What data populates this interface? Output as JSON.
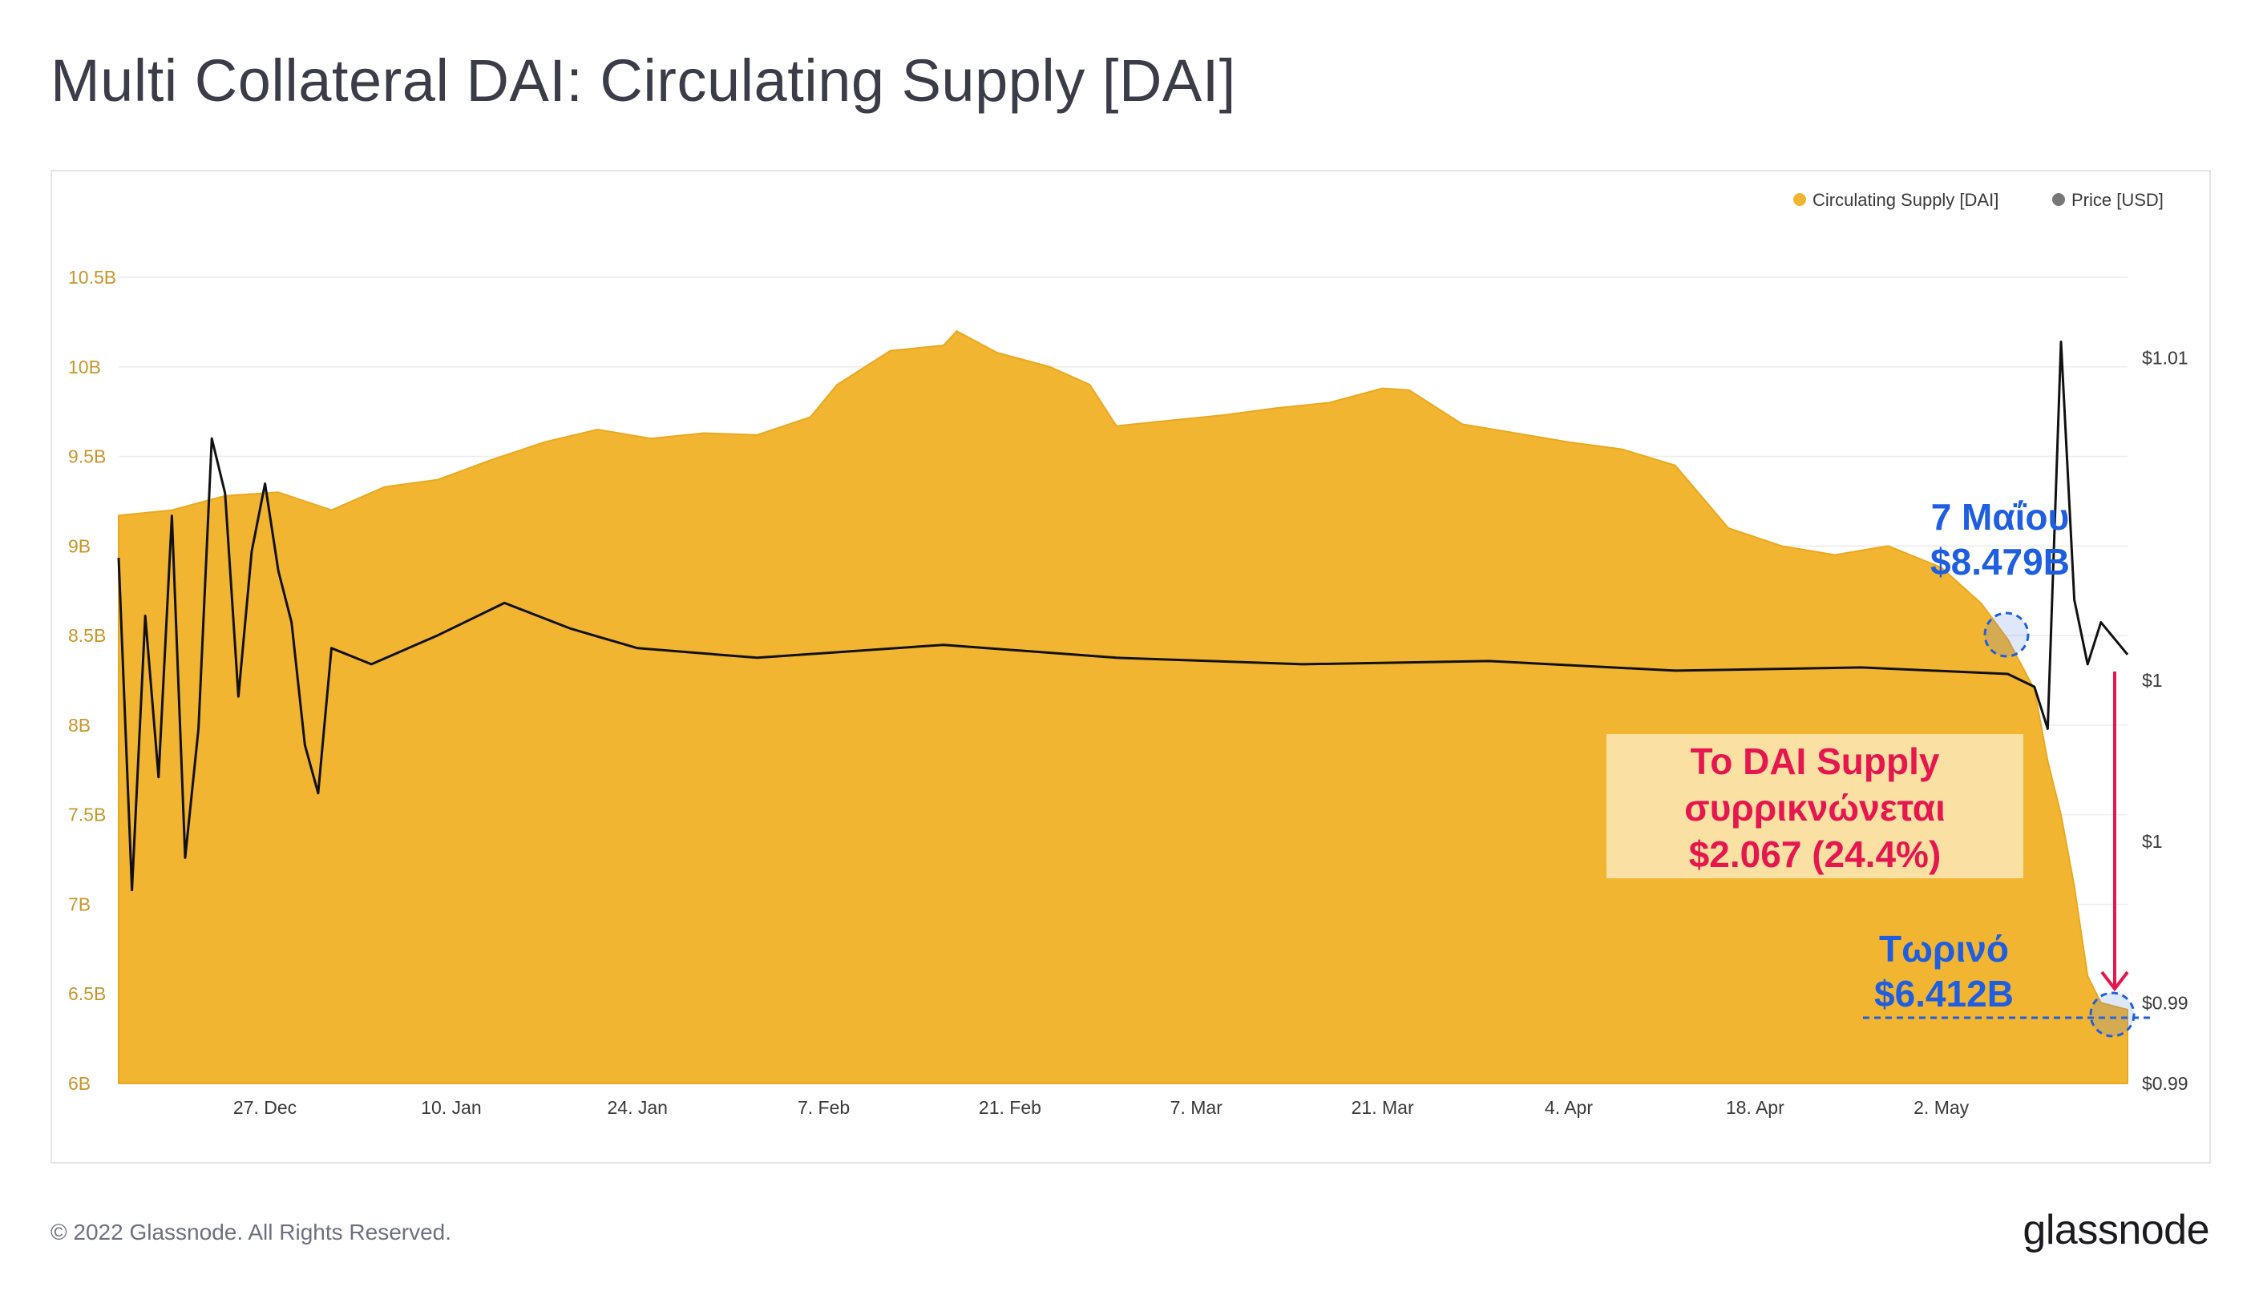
{
  "title": "Multi Collateral DAI: Circulating Supply [DAI]",
  "footer": {
    "copyright": "© 2022 Glassnode. All Rights Reserved.",
    "brand": "glassnode"
  },
  "colors": {
    "supply": "#f2b531",
    "price": "#111111",
    "annotation_blue": "#1f5ee0",
    "annotation_red": "#e6174f",
    "callout_box": "#fbe0a4"
  },
  "chart_data": {
    "type": "area",
    "legend": [
      {
        "name": "Circulating Supply [DAI]",
        "color": "#f2b531"
      },
      {
        "name": "Price [USD]",
        "color": "#777777"
      }
    ],
    "legend_position": "top-right",
    "x_ticks": [
      "27. Dec",
      "10. Jan",
      "24. Jan",
      "7. Feb",
      "21. Feb",
      "7. Mar",
      "21. Mar",
      "4. Apr",
      "18. Apr",
      "2. May"
    ],
    "x_range": [
      "2021-12-16",
      "2022-05-16"
    ],
    "y_left": {
      "ticks": [
        "10.5B",
        "10B",
        "9.5B",
        "9B",
        "8.5B",
        "8B",
        "7.5B",
        "7B",
        "6.5B",
        "6B"
      ],
      "range": [
        6.0,
        10.5
      ],
      "unit": "B DAI"
    },
    "y_right": {
      "ticks": [
        "$1.01",
        "$1",
        "$1",
        "$0.99",
        "$0.99"
      ],
      "range": [
        0.9875,
        1.0125
      ],
      "unit": "USD"
    },
    "series": [
      {
        "name": "Circulating Supply [DAI]",
        "unit": "billion DAI",
        "points": [
          [
            "2021-12-16",
            9.17
          ],
          [
            "2021-12-20",
            9.2
          ],
          [
            "2021-12-24",
            9.28
          ],
          [
            "2021-12-28",
            9.3
          ],
          [
            "2022-01-01",
            9.2
          ],
          [
            "2022-01-05",
            9.33
          ],
          [
            "2022-01-09",
            9.37
          ],
          [
            "2022-01-13",
            9.48
          ],
          [
            "2022-01-17",
            9.58
          ],
          [
            "2022-01-21",
            9.65
          ],
          [
            "2022-01-25",
            9.6
          ],
          [
            "2022-01-29",
            9.63
          ],
          [
            "2022-02-02",
            9.62
          ],
          [
            "2022-02-06",
            9.72
          ],
          [
            "2022-02-08",
            9.9
          ],
          [
            "2022-02-12",
            10.09
          ],
          [
            "2022-02-16",
            10.12
          ],
          [
            "2022-02-17",
            10.2
          ],
          [
            "2022-02-20",
            10.08
          ],
          [
            "2022-02-24",
            10.0
          ],
          [
            "2022-02-27",
            9.9
          ],
          [
            "2022-03-01",
            9.67
          ],
          [
            "2022-03-05",
            9.7
          ],
          [
            "2022-03-09",
            9.73
          ],
          [
            "2022-03-13",
            9.77
          ],
          [
            "2022-03-17",
            9.8
          ],
          [
            "2022-03-21",
            9.88
          ],
          [
            "2022-03-23",
            9.87
          ],
          [
            "2022-03-27",
            9.68
          ],
          [
            "2022-03-31",
            9.63
          ],
          [
            "2022-04-04",
            9.58
          ],
          [
            "2022-04-08",
            9.54
          ],
          [
            "2022-04-12",
            9.45
          ],
          [
            "2022-04-16",
            9.1
          ],
          [
            "2022-04-20",
            9.0
          ],
          [
            "2022-04-24",
            8.95
          ],
          [
            "2022-04-28",
            9.0
          ],
          [
            "2022-05-02",
            8.88
          ],
          [
            "2022-05-05",
            8.68
          ],
          [
            "2022-05-07",
            8.479
          ],
          [
            "2022-05-09",
            8.2
          ],
          [
            "2022-05-10",
            7.8
          ],
          [
            "2022-05-11",
            7.5
          ],
          [
            "2022-05-12",
            7.1
          ],
          [
            "2022-05-13",
            6.6
          ],
          [
            "2022-05-14",
            6.45
          ],
          [
            "2022-05-16",
            6.412
          ]
        ]
      },
      {
        "name": "Price [USD]",
        "unit": "USD",
        "points": [
          [
            "2021-12-16",
            1.0038
          ],
          [
            "2021-12-17",
            0.9935
          ],
          [
            "2021-12-18",
            1.002
          ],
          [
            "2021-12-19",
            0.997
          ],
          [
            "2021-12-20",
            1.0051
          ],
          [
            "2021-12-21",
            0.9945
          ],
          [
            "2021-12-22",
            0.9985
          ],
          [
            "2021-12-23",
            1.0075
          ],
          [
            "2021-12-24",
            1.0058
          ],
          [
            "2021-12-25",
            0.9995
          ],
          [
            "2021-12-26",
            1.004
          ],
          [
            "2021-12-27",
            1.0061
          ],
          [
            "2021-12-28",
            1.0034
          ],
          [
            "2021-12-29",
            1.0018
          ],
          [
            "2021-12-30",
            0.998
          ],
          [
            "2021-12-31",
            0.9965
          ],
          [
            "2022-01-01",
            1.001
          ],
          [
            "2022-01-04",
            1.0005
          ],
          [
            "2022-01-09",
            1.0014
          ],
          [
            "2022-01-14",
            1.0024
          ],
          [
            "2022-01-19",
            1.0016
          ],
          [
            "2022-01-24",
            1.001
          ],
          [
            "2022-02-02",
            1.0007
          ],
          [
            "2022-02-16",
            1.0011
          ],
          [
            "2022-03-01",
            1.0007
          ],
          [
            "2022-03-15",
            1.0005
          ],
          [
            "2022-03-29",
            1.0006
          ],
          [
            "2022-04-12",
            1.0003
          ],
          [
            "2022-04-26",
            1.0004
          ],
          [
            "2022-05-07",
            1.0002
          ],
          [
            "2022-05-09",
            0.9998
          ],
          [
            "2022-05-10",
            0.9985
          ],
          [
            "2022-05-11",
            1.0105
          ],
          [
            "2022-05-12",
            1.0025
          ],
          [
            "2022-05-13",
            1.0005
          ],
          [
            "2022-05-14",
            1.0018
          ],
          [
            "2022-05-16",
            1.0008
          ]
        ]
      }
    ]
  },
  "annotations": {
    "may7_label": "7 Μαΐου",
    "may7_value": "$8.479B",
    "now_label": "Τωρινό",
    "now_value": "$6.412B",
    "callout_line1": "To DAI Supply",
    "callout_line2": "συρρικνώνεται",
    "callout_line3": "$2.067 (24.4%)"
  }
}
